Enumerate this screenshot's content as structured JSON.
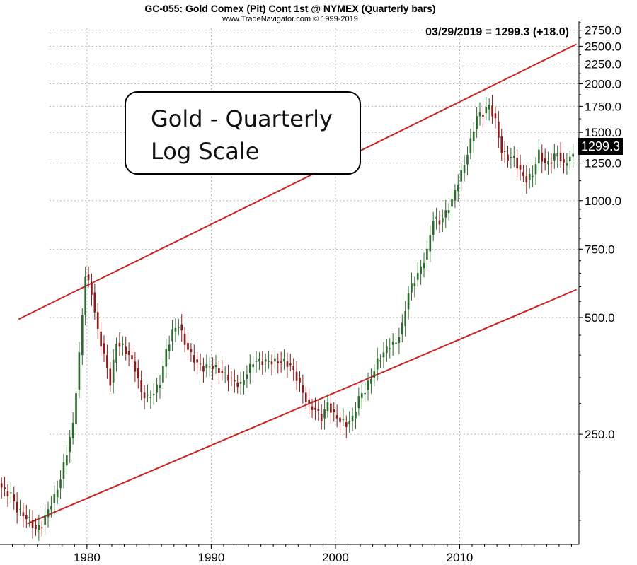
{
  "header": {
    "title": "GC-055:  Gold Comex (Pit) Cont 1st @ NYMEX  (Quarterly bars)",
    "subtitle": "www.TradeNavigator.com © 1999-2019",
    "last_quote": "03/29/2019 = 1299.3 (+18.0)"
  },
  "annotation": {
    "line1": "Gold - Quarterly",
    "line2": "Log Scale"
  },
  "price_tag": "1299.3",
  "colors": {
    "up": "#2d6a2d",
    "down": "#8b1a1a",
    "trend": "#cc2222",
    "grid": "#b8b8b8"
  },
  "chart_data": {
    "type": "candlestick",
    "scale": "log",
    "ylim": [
      130,
      2900
    ],
    "xlim": [
      1973.0,
      2019.6
    ],
    "y_ticks": [
      "250.0",
      "500.0",
      "750.0",
      "1000.0",
      "1250.0",
      "1500.0",
      "1750.0",
      "2000.0",
      "2250.0",
      "2500.0",
      "2750.0"
    ],
    "y_tick_values": [
      250,
      500,
      750,
      1000,
      1250,
      1500,
      1750,
      2000,
      2250,
      2500,
      2750
    ],
    "x_ticks": [
      "1980",
      "1990",
      "2000",
      "2010"
    ],
    "x_tick_values": [
      1980,
      1990,
      2000,
      2010
    ],
    "last_price": 1299.3,
    "trendlines": [
      {
        "x1": 1974.5,
        "y1": 495,
        "x2": 2019.4,
        "y2": 2530
      },
      {
        "x1": 1975.2,
        "y1": 147,
        "x2": 2019.4,
        "y2": 590
      }
    ],
    "price_path": [
      [
        1973.0,
        187
      ],
      [
        1973.5,
        178
      ],
      [
        1974.0,
        175
      ],
      [
        1974.5,
        160
      ],
      [
        1975.0,
        155
      ],
      [
        1975.5,
        150
      ],
      [
        1976.0,
        142
      ],
      [
        1976.5,
        146
      ],
      [
        1977.0,
        160
      ],
      [
        1977.5,
        172
      ],
      [
        1978.0,
        192
      ],
      [
        1978.5,
        225
      ],
      [
        1979.0,
        265
      ],
      [
        1979.5,
        400
      ],
      [
        1980.0,
        645
      ],
      [
        1980.5,
        580
      ],
      [
        1981.0,
        460
      ],
      [
        1981.5,
        400
      ],
      [
        1982.0,
        340
      ],
      [
        1982.5,
        430
      ],
      [
        1983.0,
        420
      ],
      [
        1983.5,
        400
      ],
      [
        1984.0,
        370
      ],
      [
        1984.5,
        320
      ],
      [
        1985.0,
        310
      ],
      [
        1985.5,
        320
      ],
      [
        1986.0,
        340
      ],
      [
        1986.5,
        410
      ],
      [
        1987.0,
        460
      ],
      [
        1987.5,
        480
      ],
      [
        1988.0,
        430
      ],
      [
        1988.5,
        400
      ],
      [
        1989.0,
        380
      ],
      [
        1989.5,
        370
      ],
      [
        1990.0,
        375
      ],
      [
        1990.5,
        370
      ],
      [
        1991.0,
        360
      ],
      [
        1991.5,
        350
      ],
      [
        1992.0,
        340
      ],
      [
        1992.5,
        335
      ],
      [
        1993.0,
        360
      ],
      [
        1993.5,
        385
      ],
      [
        1994.0,
        385
      ],
      [
        1994.5,
        385
      ],
      [
        1995.0,
        385
      ],
      [
        1995.5,
        385
      ],
      [
        1996.0,
        385
      ],
      [
        1996.5,
        375
      ],
      [
        1997.0,
        350
      ],
      [
        1997.5,
        320
      ],
      [
        1998.0,
        295
      ],
      [
        1998.5,
        290
      ],
      [
        1999.0,
        275
      ],
      [
        1999.5,
        300
      ],
      [
        2000.0,
        280
      ],
      [
        2000.5,
        272
      ],
      [
        2001.0,
        265
      ],
      [
        2001.5,
        275
      ],
      [
        2002.0,
        310
      ],
      [
        2002.5,
        325
      ],
      [
        2003.0,
        350
      ],
      [
        2003.5,
        385
      ],
      [
        2004.0,
        405
      ],
      [
        2004.5,
        425
      ],
      [
        2005.0,
        430
      ],
      [
        2005.5,
        475
      ],
      [
        2006.0,
        580
      ],
      [
        2006.5,
        625
      ],
      [
        2007.0,
        670
      ],
      [
        2007.5,
        740
      ],
      [
        2008.0,
        900
      ],
      [
        2008.5,
        880
      ],
      [
        2009.0,
        930
      ],
      [
        2009.5,
        1000
      ],
      [
        2010.0,
        1120
      ],
      [
        2010.5,
        1240
      ],
      [
        2011.0,
        1420
      ],
      [
        2011.5,
        1650
      ],
      [
        2012.0,
        1680
      ],
      [
        2012.5,
        1760
      ],
      [
        2013.0,
        1600
      ],
      [
        2013.5,
        1340
      ],
      [
        2014.0,
        1290
      ],
      [
        2014.5,
        1290
      ],
      [
        2015.0,
        1185
      ],
      [
        2015.5,
        1130
      ],
      [
        2016.0,
        1170
      ],
      [
        2016.5,
        1330
      ],
      [
        2017.0,
        1240
      ],
      [
        2017.5,
        1270
      ],
      [
        2018.0,
        1330
      ],
      [
        2018.5,
        1230
      ],
      [
        2019.0,
        1299
      ]
    ]
  }
}
